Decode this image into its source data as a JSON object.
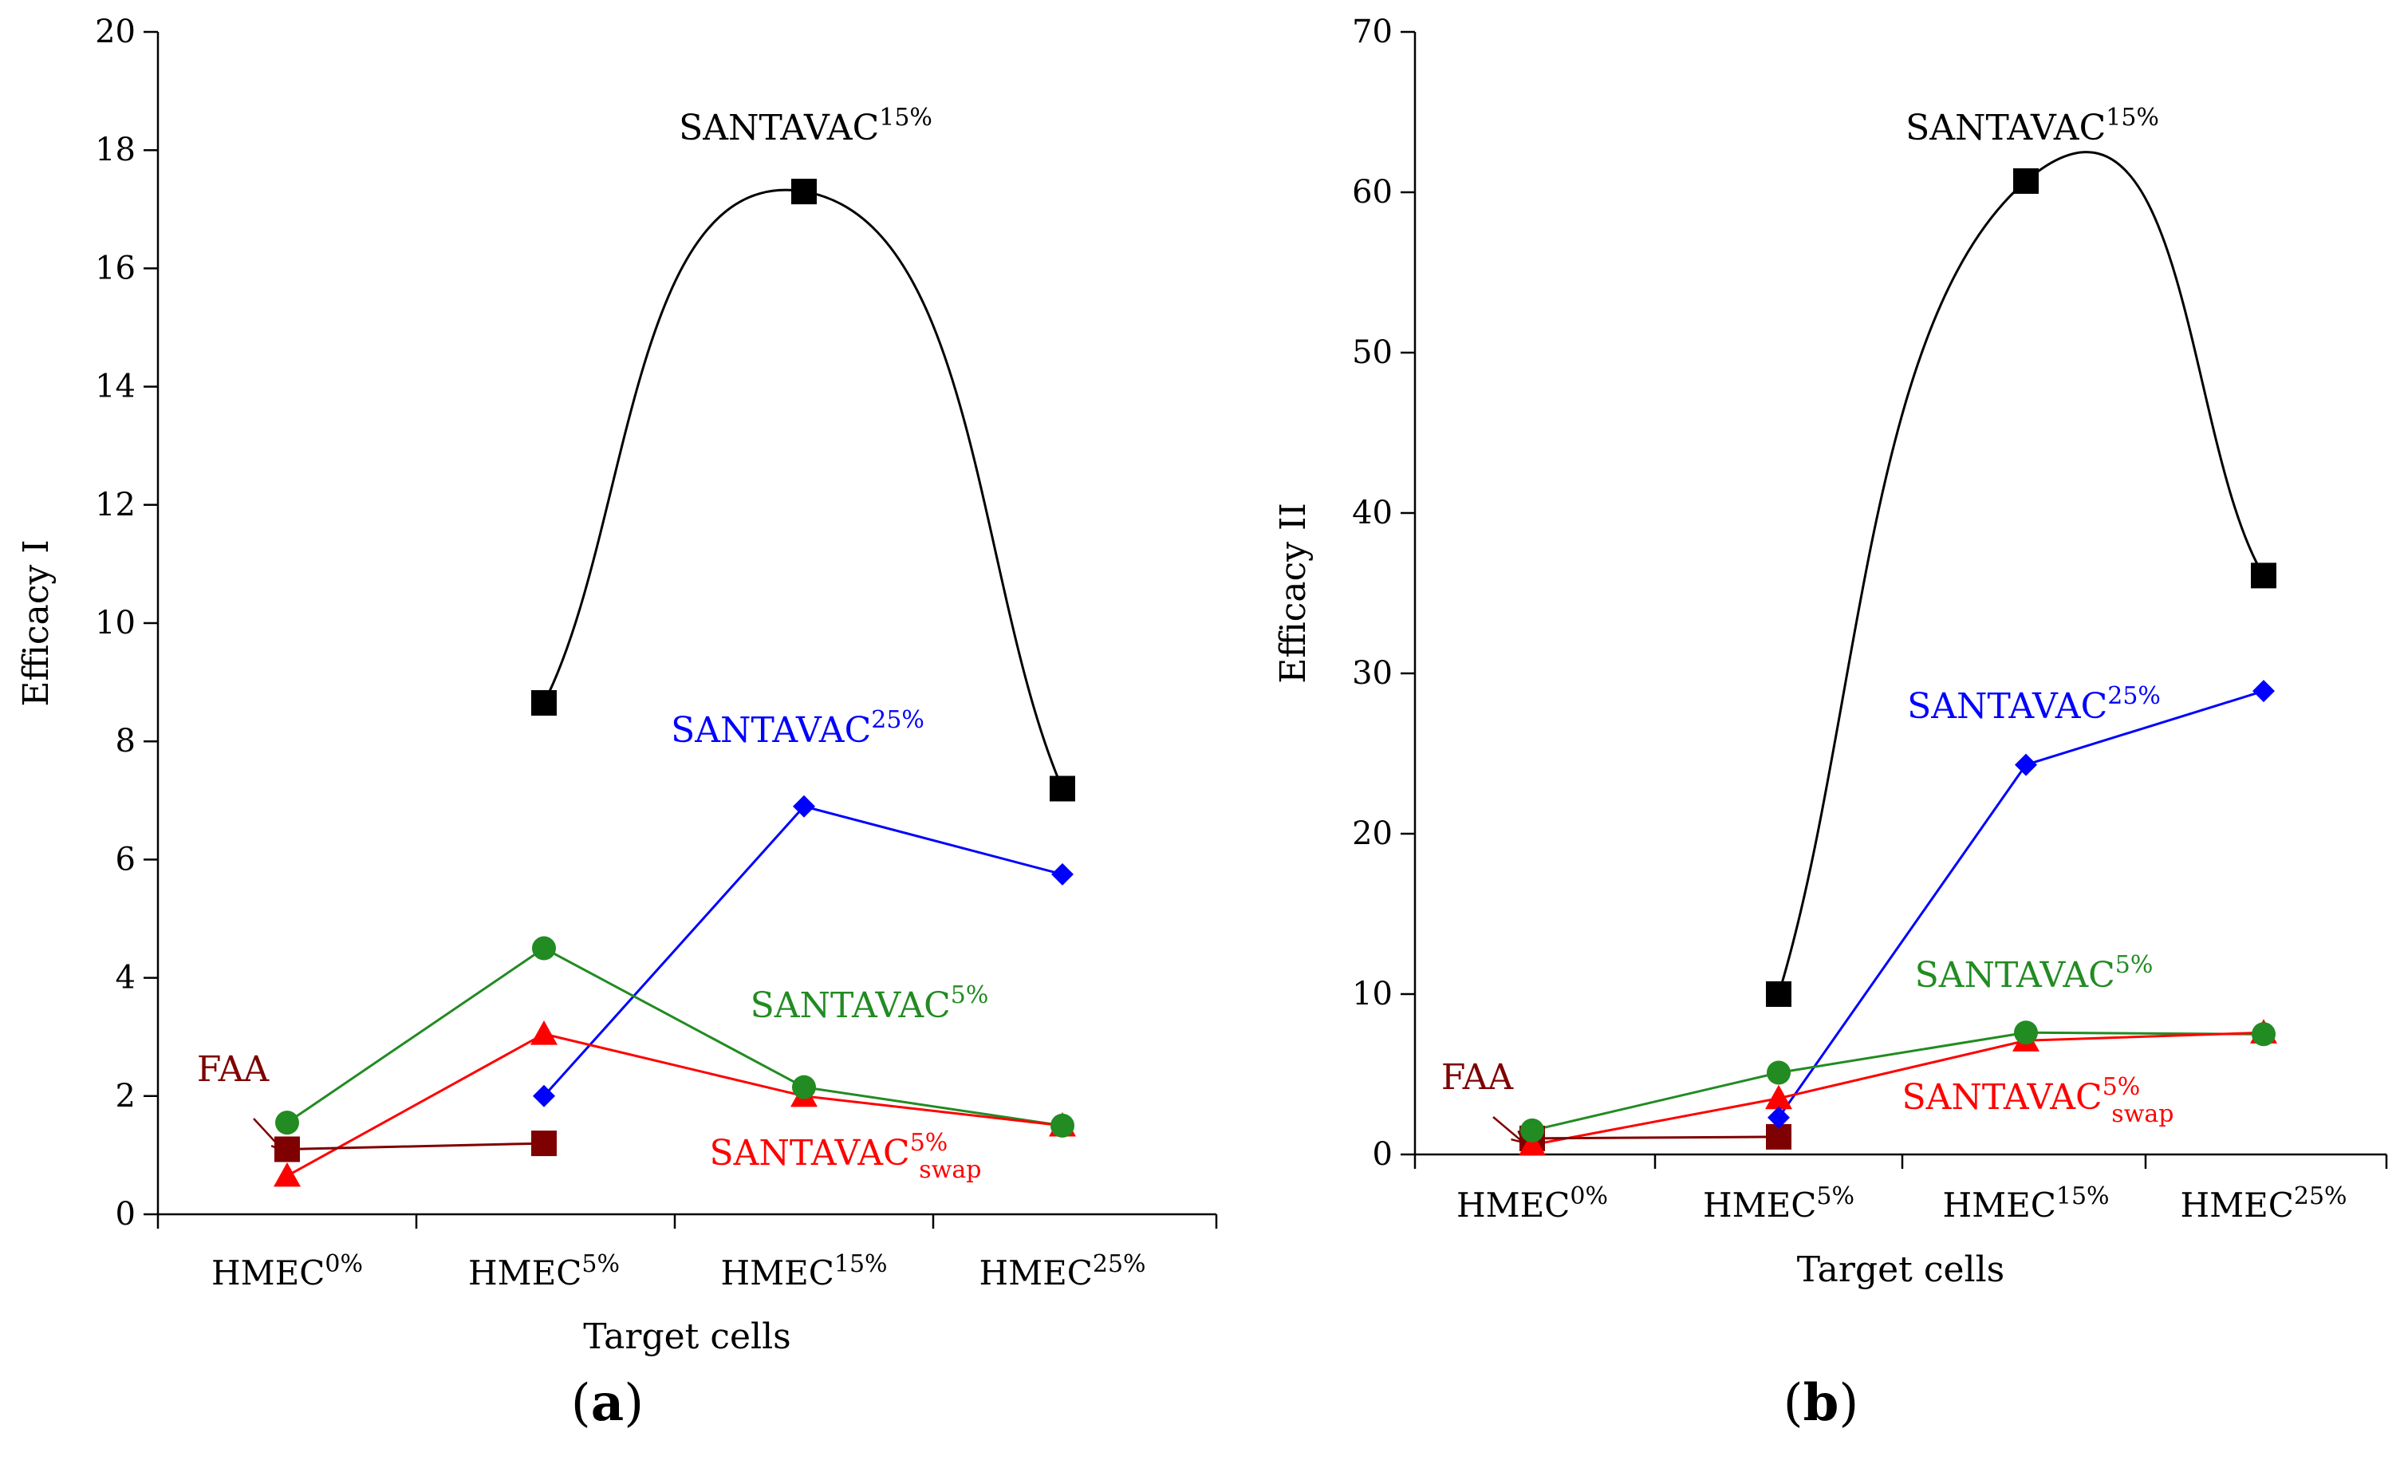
{
  "chart_data": [
    {
      "type": "line",
      "panel_label": "(a)",
      "panel_letter": "a",
      "xlabel": "Target cells",
      "ylabel": "Efficacy I",
      "ylim": [
        0,
        20
      ],
      "yticks": [
        "0",
        "2",
        "4",
        "6",
        "8",
        "10",
        "12",
        "14",
        "16",
        "18",
        "20"
      ],
      "categories": [
        {
          "base": "HMEC",
          "sup": "0%"
        },
        {
          "base": "HMEC",
          "sup": "5%"
        },
        {
          "base": "HMEC",
          "sup": "15%"
        },
        {
          "base": "HMEC",
          "sup": "25%"
        }
      ],
      "series": [
        {
          "key": "s15",
          "name": "SANTAVAC",
          "sup": "15%",
          "sub": "",
          "color": "#000000",
          "marker": "square",
          "smooth": true,
          "values": [
            null,
            8.65,
            17.3,
            7.2
          ]
        },
        {
          "key": "s25",
          "name": "SANTAVAC",
          "sup": "25%",
          "sub": "",
          "color": "#0000ff",
          "marker": "diamond",
          "smooth": false,
          "values": [
            null,
            2.0,
            6.9,
            5.75
          ]
        },
        {
          "key": "s5",
          "name": "SANTAVAC",
          "sup": "5%",
          "sub": "",
          "color": "#228b22",
          "marker": "circle",
          "smooth": false,
          "values": [
            1.55,
            4.5,
            2.15,
            1.5
          ]
        },
        {
          "key": "s5swap",
          "name": "SANTAVAC",
          "sup": "5%",
          "sub": "swap",
          "color": "#ff0000",
          "marker": "triangle",
          "smooth": false,
          "values": [
            0.65,
            3.05,
            2.0,
            1.5
          ]
        },
        {
          "key": "faa",
          "name": "FAA",
          "sup": "",
          "sub": "",
          "color": "#7f0000",
          "marker": "square",
          "smooth": false,
          "values": [
            1.1,
            1.2,
            null,
            null
          ]
        }
      ]
    },
    {
      "type": "line",
      "panel_label": "(b)",
      "panel_letter": "b",
      "xlabel": "Target cells",
      "ylabel": "Efficacy II",
      "ylim": [
        0,
        70
      ],
      "yticks": [
        "0",
        "10",
        "20",
        "30",
        "40",
        "50",
        "60",
        "70"
      ],
      "categories": [
        {
          "base": "HMEC",
          "sup": "0%"
        },
        {
          "base": "HMEC",
          "sup": "5%"
        },
        {
          "base": "HMEC",
          "sup": "15%"
        },
        {
          "base": "HMEC",
          "sup": "25%"
        }
      ],
      "series": [
        {
          "key": "s15",
          "name": "SANTAVAC",
          "sup": "15%",
          "sub": "",
          "color": "#000000",
          "marker": "square",
          "smooth": true,
          "values": [
            null,
            10.0,
            60.7,
            36.1
          ]
        },
        {
          "key": "s25",
          "name": "SANTAVAC",
          "sup": "25%",
          "sub": "",
          "color": "#0000ff",
          "marker": "diamond",
          "smooth": false,
          "values": [
            null,
            2.3,
            24.3,
            28.9
          ]
        },
        {
          "key": "s5",
          "name": "SANTAVAC",
          "sup": "5%",
          "sub": "",
          "color": "#228b22",
          "marker": "circle",
          "smooth": false,
          "values": [
            1.5,
            5.1,
            7.6,
            7.5
          ]
        },
        {
          "key": "s5swap",
          "name": "SANTAVAC",
          "sup": "5%",
          "sub": "swap",
          "color": "#ff0000",
          "marker": "triangle",
          "smooth": false,
          "values": [
            0.6,
            3.5,
            7.1,
            7.6
          ]
        },
        {
          "key": "faa",
          "name": "FAA",
          "sup": "",
          "sub": "",
          "color": "#7f0000",
          "marker": "square",
          "smooth": false,
          "values": [
            1.0,
            1.1,
            null,
            null
          ]
        }
      ]
    }
  ]
}
